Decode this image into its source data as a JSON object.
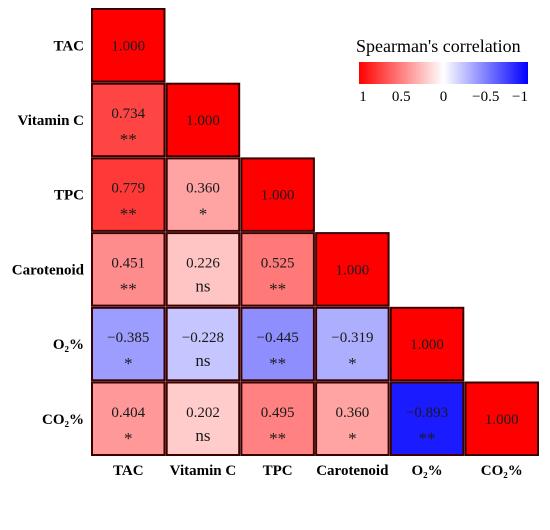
{
  "chart_data": {
    "type": "heatmap",
    "variables": [
      "TAC",
      "Vitamin C",
      "TPC",
      "Carotenoid",
      "O₂%",
      "CO₂%"
    ],
    "matrix": [
      [
        1.0,
        null,
        null,
        null,
        null,
        null
      ],
      [
        0.734,
        1.0,
        null,
        null,
        null,
        null
      ],
      [
        0.779,
        0.36,
        1.0,
        null,
        null,
        null
      ],
      [
        0.451,
        0.226,
        0.525,
        1.0,
        null,
        null
      ],
      [
        -0.385,
        -0.228,
        -0.445,
        -0.319,
        1.0,
        null
      ],
      [
        0.404,
        0.202,
        0.495,
        0.36,
        -0.893,
        1.0
      ]
    ],
    "labels": [
      [
        "1.000",
        null,
        null,
        null,
        null,
        null
      ],
      [
        "0.734",
        "1.000",
        null,
        null,
        null,
        null
      ],
      [
        "0.779",
        "0.360",
        "1.000",
        null,
        null,
        null
      ],
      [
        "0.451",
        "0.226",
        "0.525",
        "1.000",
        null,
        null
      ],
      [
        "−0.385",
        "−0.228",
        "−0.445",
        "−0.319",
        "1.000",
        null
      ],
      [
        "0.404",
        "0.202",
        "0.495",
        "0.360",
        "−0.893",
        "1.000"
      ]
    ],
    "significance": [
      [
        "",
        null,
        null,
        null,
        null,
        null
      ],
      [
        "**",
        "",
        null,
        null,
        null,
        null
      ],
      [
        "**",
        "*",
        "",
        null,
        null,
        null
      ],
      [
        "**",
        "ns",
        "**",
        "",
        null,
        null
      ],
      [
        "*",
        "ns",
        "**",
        "*",
        "",
        null
      ],
      [
        "*",
        "ns",
        "**",
        "*",
        "**",
        ""
      ]
    ],
    "legend": {
      "title": "Spearman's correlation",
      "ticks": [
        "1",
        "0.5",
        "0",
        "−0.5",
        "−1"
      ],
      "tick_values": [
        1,
        0.5,
        0,
        -0.5,
        -1
      ],
      "range": [
        1,
        -1
      ],
      "position": "top-right"
    },
    "colors": {
      "positive": "#ff0000",
      "neutral": "#ffffff",
      "negative": "#0000ff",
      "border": "#3a0000"
    }
  }
}
